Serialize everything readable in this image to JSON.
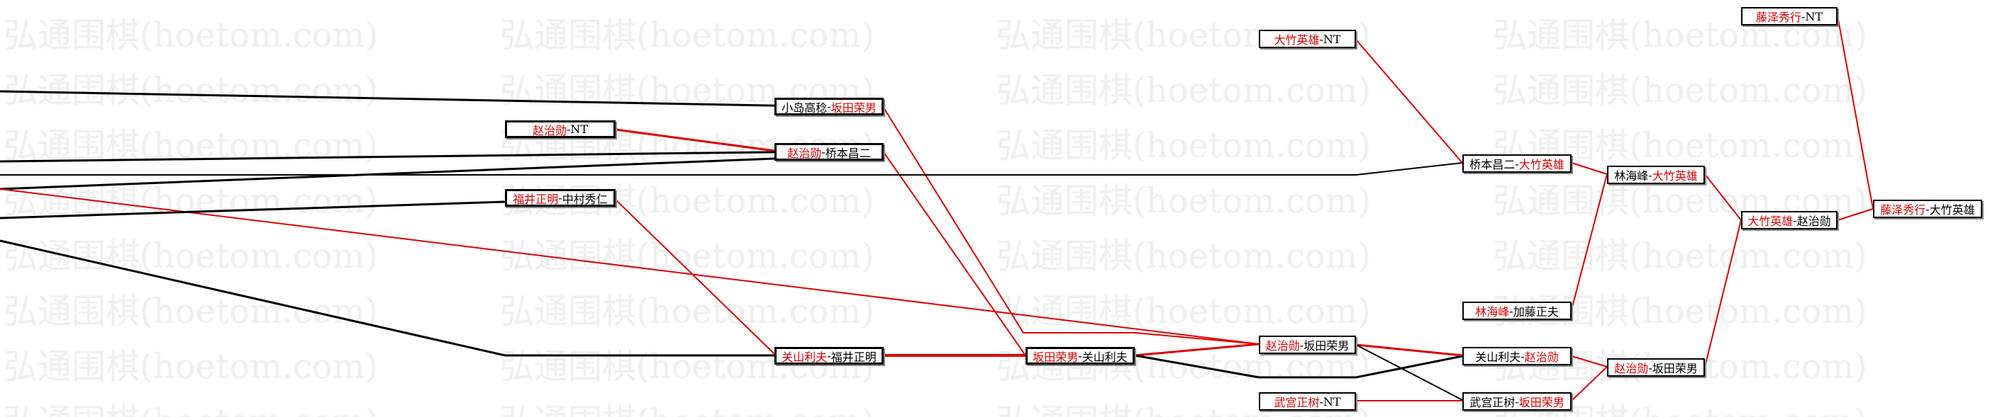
{
  "watermark": "弘通围棋(hoetom.com)",
  "colors": {
    "winner": "#e00000",
    "loser": "#000000",
    "line_red": "#e00000",
    "line_black": "#000000"
  },
  "matches": [
    {
      "id": "A",
      "p1": "小岛高稔",
      "p2": "坂田荣男",
      "winner": 2
    },
    {
      "id": "B",
      "p1": "赵治勋",
      "p2": "NT",
      "winner": 1
    },
    {
      "id": "C",
      "p1": "赵治勋",
      "p2": "桥本昌二",
      "winner": 1
    },
    {
      "id": "D",
      "p1": "福井正明",
      "p2": "中村秀仁",
      "winner": 1
    },
    {
      "id": "E",
      "p1": "关山利夫",
      "p2": "福井正明",
      "winner": 1
    },
    {
      "id": "F",
      "p1": "坂田荣男",
      "p2": "关山利夫",
      "winner": 1
    },
    {
      "id": "G",
      "p1": "赵治勋",
      "p2": "坂田荣男",
      "winner": 1
    },
    {
      "id": "H",
      "p1": "武宫正树",
      "p2": "NT",
      "winner": 1
    },
    {
      "id": "I",
      "p1": "大竹英雄",
      "p2": "NT",
      "winner": 1
    },
    {
      "id": "J",
      "p1": "桥本昌二",
      "p2": "大竹英雄",
      "winner": 2
    },
    {
      "id": "K",
      "p1": "林海峰",
      "p2": "加藤正夫",
      "winner": 1
    },
    {
      "id": "L",
      "p1": "关山利夫",
      "p2": "赵治勋",
      "winner": 2
    },
    {
      "id": "M",
      "p1": "武宫正树",
      "p2": "坂田荣男",
      "winner": 2
    },
    {
      "id": "N",
      "p1": "林海峰",
      "p2": "大竹英雄",
      "winner": 2
    },
    {
      "id": "O",
      "p1": "赵治勋",
      "p2": "坂田荣男",
      "winner": 1
    },
    {
      "id": "P",
      "p1": "大竹英雄",
      "p2": "赵治勋",
      "winner": 1
    },
    {
      "id": "Q",
      "p1": "藤泽秀行",
      "p2": "NT",
      "winner": 1
    },
    {
      "id": "R",
      "p1": "藤泽秀行",
      "p2": "大竹英雄",
      "winner": 1
    }
  ]
}
